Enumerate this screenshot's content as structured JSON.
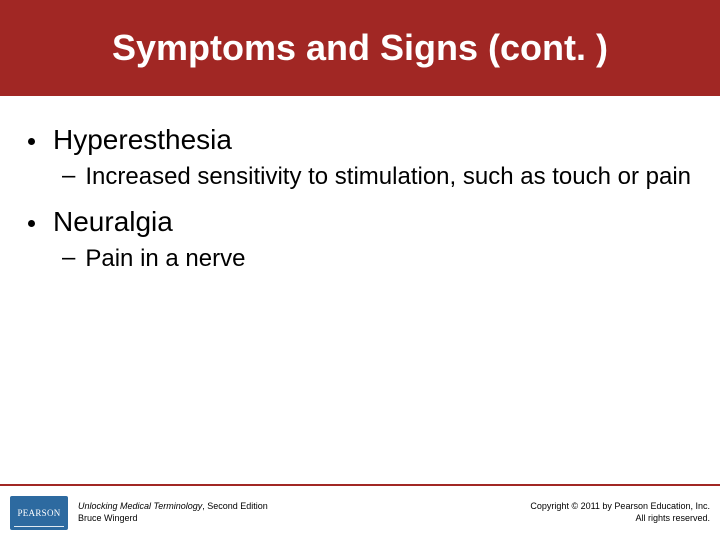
{
  "colors": {
    "header_bg": "#a12724",
    "title_color": "#ffffff",
    "bullet_dot": "#000000",
    "footer_line": "#a12724",
    "logo_bg": "#2d6aa0",
    "logo_text": "#ffffff",
    "footer_text": "#000000"
  },
  "sizes": {
    "title_fontsize": 36,
    "bullet_fontsize": 28,
    "sub_fontsize": 24,
    "footer_fontsize": 9
  },
  "title": "Symptoms and Signs (cont. )",
  "bullets": [
    {
      "text": "Hyperesthesia",
      "subs": [
        "Increased sensitivity to stimulation, such as touch or pain"
      ]
    },
    {
      "text": "Neuralgia",
      "subs": [
        "Pain in a nerve"
      ]
    }
  ],
  "footer": {
    "logo": "PEARSON",
    "book_title": "Unlocking Medical Terminology",
    "book_edition": ", Second Edition",
    "author": "Bruce Wingerd",
    "copyright_line1": "Copyright © 2011 by Pearson Education, Inc.",
    "copyright_line2": "All rights reserved."
  }
}
